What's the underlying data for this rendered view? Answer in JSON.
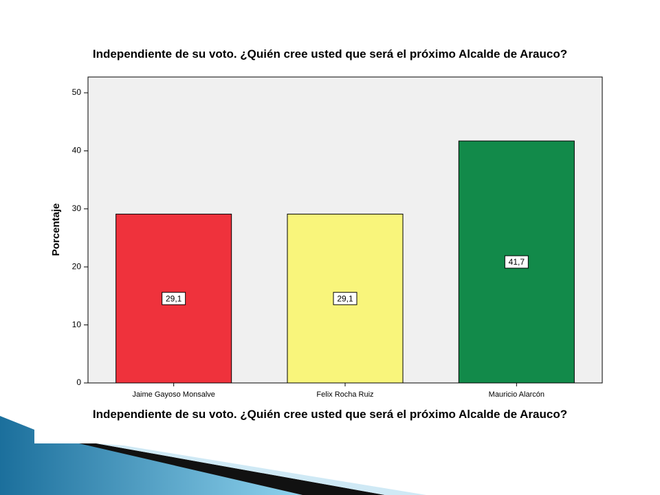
{
  "chart_data": {
    "type": "bar",
    "title": "Independiente de su voto. ¿Quién cree usted que será el próximo Alcalde de Arauco?",
    "x_label": "Independiente de su voto. ¿Quién cree usted que será el próximo Alcalde de Arauco?",
    "y_label": "Porcentaje",
    "categories": [
      "Jaime Gayoso Monsalve",
      "Felix Rocha Ruiz",
      "Mauricio Alarcón"
    ],
    "values": [
      29.1,
      29.1,
      41.7
    ],
    "value_labels": [
      "29,1",
      "29,1",
      "41,7"
    ],
    "colors": [
      "#ef323c",
      "#f9f57b",
      "#128a4a"
    ],
    "ylim": [
      0,
      50
    ],
    "yticks": [
      0,
      10,
      20,
      30,
      40,
      50
    ],
    "grid": false
  }
}
